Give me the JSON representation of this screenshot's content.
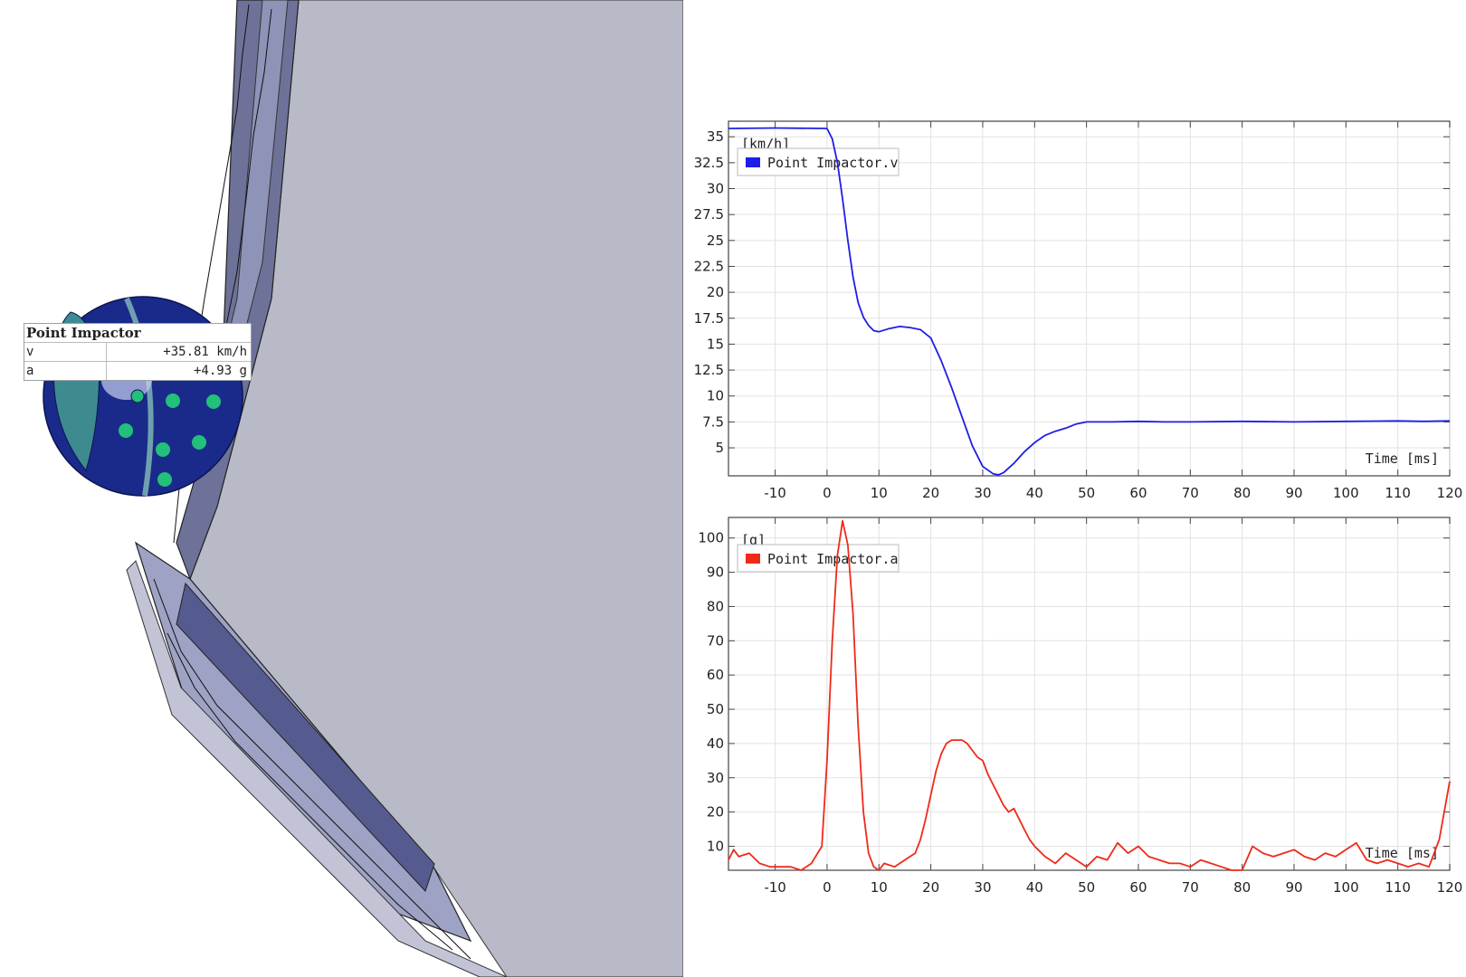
{
  "info_box": {
    "title": "Point Impactor",
    "rows": [
      {
        "label": "v",
        "value": "+35.81 km/h"
      },
      {
        "label": "a",
        "value": "+4.93 g"
      }
    ]
  },
  "colors": {
    "velocity_line": "#1e1ee6",
    "accel_line": "#ee2a1a",
    "panel_fill": "#b9bac7",
    "impactor_body": "#1a2a8a",
    "sensor_dots": "#22c07a"
  },
  "chart_data": [
    {
      "type": "line",
      "unit_label": "[km/h]",
      "xlabel": "Time [ms]",
      "legend": "Point Impactor.v",
      "xlim": [
        -19,
        120
      ],
      "ylim": [
        2.3,
        36.5
      ],
      "x_ticks": [
        -10,
        0,
        10,
        20,
        30,
        40,
        50,
        60,
        70,
        80,
        90,
        100,
        110,
        120
      ],
      "y_ticks": [
        5,
        7.5,
        10,
        12.5,
        15,
        17.5,
        20,
        22.5,
        25,
        27.5,
        30,
        32.5,
        35
      ],
      "y_tick_labels": [
        "5",
        "7.5",
        "10",
        "12.5",
        "15",
        "17.5",
        "20",
        "22.5",
        "25",
        "27.5",
        "30",
        "32.5",
        "35"
      ],
      "series": [
        {
          "name": "Point Impactor.v",
          "x": [
            -19,
            -10,
            0,
            1,
            2,
            3,
            4,
            5,
            6,
            7,
            8,
            9,
            10,
            12,
            14,
            16,
            18,
            20,
            22,
            24,
            26,
            28,
            30,
            32,
            33,
            34,
            36,
            38,
            40,
            42,
            44,
            46,
            48,
            50,
            55,
            60,
            65,
            70,
            80,
            90,
            100,
            110,
            115,
            120
          ],
          "y": [
            35.8,
            35.85,
            35.8,
            34.8,
            32.5,
            29.0,
            25.0,
            21.5,
            19.0,
            17.6,
            16.8,
            16.3,
            16.2,
            16.5,
            16.7,
            16.6,
            16.4,
            15.6,
            13.4,
            10.8,
            8.0,
            5.2,
            3.2,
            2.5,
            2.4,
            2.6,
            3.5,
            4.6,
            5.5,
            6.2,
            6.6,
            6.9,
            7.3,
            7.5,
            7.5,
            7.55,
            7.5,
            7.5,
            7.55,
            7.5,
            7.55,
            7.6,
            7.55,
            7.6
          ]
        }
      ]
    },
    {
      "type": "line",
      "unit_label": "[g]",
      "xlabel": "Time [ms]",
      "legend": "Point Impactor.a",
      "xlim": [
        -19,
        120
      ],
      "ylim": [
        3,
        106
      ],
      "x_ticks": [
        -10,
        0,
        10,
        20,
        30,
        40,
        50,
        60,
        70,
        80,
        90,
        100,
        110,
        120
      ],
      "y_ticks": [
        10,
        20,
        30,
        40,
        50,
        60,
        70,
        80,
        90,
        100
      ],
      "y_tick_labels": [
        "10",
        "20",
        "30",
        "40",
        "50",
        "60",
        "70",
        "80",
        "90",
        "100"
      ],
      "series": [
        {
          "name": "Point Impactor.a",
          "x": [
            -19,
            -18,
            -17,
            -15,
            -13,
            -11,
            -9,
            -7,
            -5,
            -3,
            -1,
            0,
            1,
            2,
            3,
            4,
            5,
            6,
            7,
            8,
            9,
            10,
            11,
            13,
            15,
            17,
            18,
            19,
            20,
            21,
            22,
            23,
            24,
            25,
            26,
            27,
            28,
            29,
            30,
            31,
            32,
            33,
            34,
            35,
            36,
            37,
            38,
            39,
            40,
            42,
            44,
            46,
            48,
            50,
            52,
            54,
            56,
            58,
            60,
            62,
            64,
            66,
            68,
            70,
            72,
            74,
            76,
            78,
            80,
            82,
            84,
            86,
            88,
            90,
            92,
            94,
            96,
            98,
            100,
            102,
            104,
            106,
            108,
            110,
            112,
            114,
            116,
            118,
            120
          ],
          "y": [
            6,
            9,
            7,
            8,
            5,
            4,
            4,
            4,
            3,
            5,
            10,
            35,
            70,
            95,
            105,
            98,
            78,
            45,
            20,
            8,
            4,
            3,
            5,
            4,
            6,
            8,
            12,
            18,
            25,
            32,
            37,
            40,
            41,
            41,
            41,
            40,
            38,
            36,
            35,
            31,
            28,
            25,
            22,
            20,
            21,
            18,
            15,
            12,
            10,
            7,
            5,
            8,
            6,
            4,
            7,
            6,
            11,
            8,
            10,
            7,
            6,
            5,
            5,
            4,
            6,
            5,
            4,
            3,
            3,
            10,
            8,
            7,
            8,
            9,
            7,
            6,
            8,
            7,
            9,
            11,
            6,
            5,
            6,
            5,
            4,
            5,
            4,
            12,
            29
          ]
        }
      ]
    }
  ]
}
